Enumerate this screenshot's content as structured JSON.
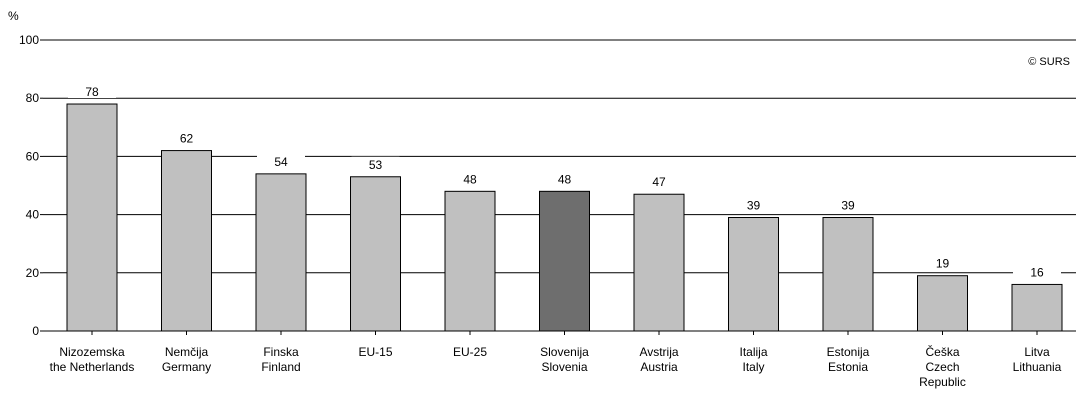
{
  "chart_data": {
    "type": "bar",
    "y_unit": "%",
    "ylim": [
      0,
      100
    ],
    "yticks": [
      0,
      20,
      40,
      60,
      80,
      100
    ],
    "grid": true,
    "categories": [
      [
        "Nizozemska",
        "the Netherlands"
      ],
      [
        "Nemčija",
        "Germany"
      ],
      [
        "Finska",
        "Finland"
      ],
      [
        "EU-15"
      ],
      [
        "EU-25"
      ],
      [
        "Slovenija",
        "Slovenia"
      ],
      [
        "Avstrija",
        "Austria"
      ],
      [
        "Italija",
        "Italy"
      ],
      [
        "Estonija",
        "Estonia"
      ],
      [
        "Češka",
        "Czech",
        "Republic"
      ],
      [
        "Litva",
        "Lithuania"
      ]
    ],
    "values": [
      78,
      62,
      54,
      53,
      48,
      48,
      47,
      39,
      39,
      19,
      16
    ],
    "highlight_index": 5,
    "colors": {
      "bar": "#c0c0c0",
      "highlight": "#6e6e6e",
      "stroke": "#000000",
      "grid": "#000000"
    },
    "source": "© SURS"
  }
}
